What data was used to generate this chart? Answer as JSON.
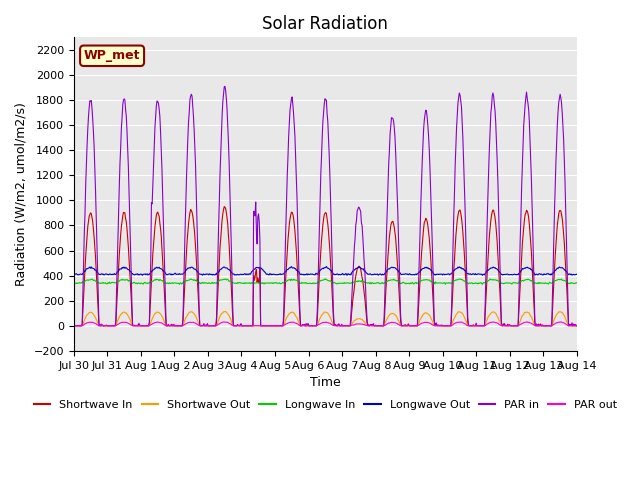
{
  "title": "Solar Radiation",
  "xlabel": "Time",
  "ylabel": "Radiation (W/m2, umol/m2/s)",
  "ylim": [
    -200,
    2300
  ],
  "yticks": [
    -200,
    0,
    200,
    400,
    600,
    800,
    1000,
    1200,
    1400,
    1600,
    1800,
    2000,
    2200
  ],
  "date_labels": [
    "Jul 30",
    "Jul 31",
    "Aug 1",
    "Aug 2",
    "Aug 3",
    "Aug 4",
    "Aug 5",
    "Aug 6",
    "Aug 7",
    "Aug 8",
    "Aug 9",
    "Aug 10",
    "Aug 11",
    "Aug 12",
    "Aug 13",
    "Aug 14"
  ],
  "colors": {
    "shortwave_in": "#cc0000",
    "shortwave_out": "#ff9900",
    "longwave_in": "#00cc00",
    "longwave_out": "#0000cc",
    "par_in": "#8800cc",
    "par_out": "#ff00cc"
  },
  "background_color": "#e8e8e8",
  "legend_box_color": "#ffffcc",
  "legend_box_text": "WP_met",
  "n_days": 15,
  "points_per_day": 48
}
